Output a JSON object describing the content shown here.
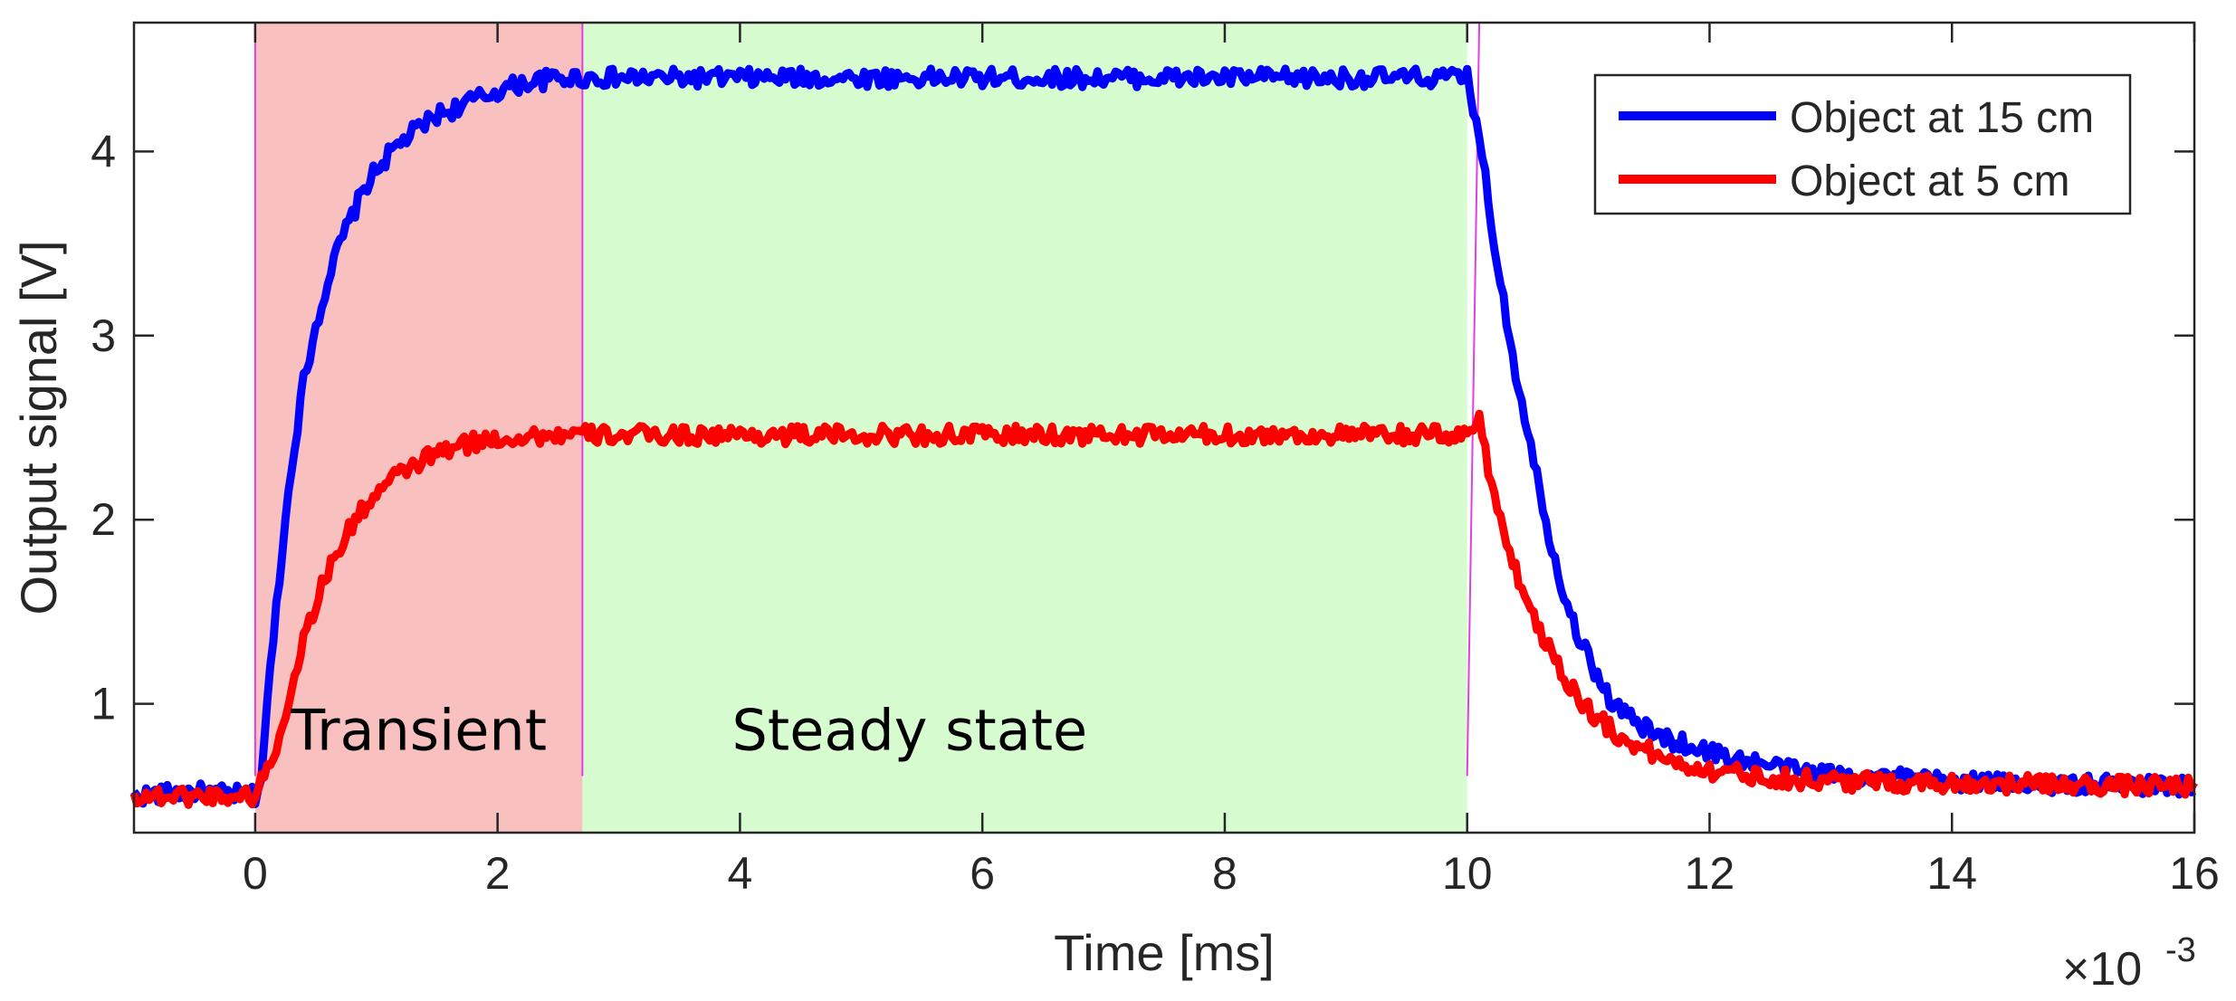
{
  "chart_data": {
    "type": "line",
    "title": "",
    "xlabel": "Time [ms]",
    "ylabel": "Output signal [V]",
    "x_multiplier_label": "×10",
    "x_multiplier_exponent": "-3",
    "xlim": [
      -1,
      16
    ],
    "ylim": [
      0.3,
      4.7
    ],
    "xticks": [
      0,
      2,
      4,
      6,
      8,
      10,
      12,
      14,
      16
    ],
    "xtick_labels": [
      "0",
      "2",
      "4",
      "6",
      "8",
      "10",
      "12",
      "14",
      "16"
    ],
    "yticks": [
      1,
      2,
      3,
      4
    ],
    "ytick_labels": [
      "1",
      "2",
      "3",
      "4"
    ],
    "grid": false,
    "legend_position": "top-right",
    "regions": [
      {
        "name": "transient",
        "label": "Transient",
        "x_start": 0,
        "x_end": 2.7,
        "color": "#f9c0c0"
      },
      {
        "name": "steady-state",
        "label": "Steady state",
        "x_start": 2.7,
        "x_end": 10,
        "color": "#d6fcd0"
      }
    ],
    "boundary_color": "#e040e0",
    "series": [
      {
        "name": "Object at 15 cm",
        "color": "#0000ff",
        "x": [
          -1,
          -0.5,
          0,
          0.05,
          0.1,
          0.2,
          0.3,
          0.4,
          0.5,
          0.6,
          0.7,
          0.8,
          0.9,
          1.0,
          1.1,
          1.2,
          1.3,
          1.4,
          1.5,
          1.6,
          1.7,
          1.8,
          1.9,
          2.0,
          2.1,
          2.2,
          2.3,
          2.4,
          2.5,
          2.6,
          2.7,
          10.0,
          10.1,
          10.2,
          10.3,
          10.4,
          10.5,
          10.6,
          10.7,
          10.8,
          10.9,
          11.0,
          11.1,
          11.2,
          11.3,
          11.4,
          11.5,
          11.6,
          11.8,
          12.0,
          12.2,
          12.4,
          12.6,
          12.8,
          13.0,
          13.5,
          14.0,
          14.5,
          15.0,
          15.5,
          16.0
        ],
        "values": [
          0.5,
          0.52,
          0.5,
          0.6,
          1.0,
          1.7,
          2.3,
          2.75,
          3.05,
          3.3,
          3.5,
          3.65,
          3.8,
          3.9,
          3.98,
          4.05,
          4.1,
          4.15,
          4.2,
          4.22,
          4.25,
          4.28,
          4.3,
          4.33,
          4.35,
          4.37,
          4.38,
          4.39,
          4.4,
          4.4,
          4.4,
          4.4,
          4.1,
          3.6,
          3.2,
          2.8,
          2.5,
          2.15,
          1.85,
          1.6,
          1.4,
          1.25,
          1.12,
          1.0,
          0.95,
          0.9,
          0.85,
          0.82,
          0.78,
          0.74,
          0.7,
          0.68,
          0.65,
          0.63,
          0.62,
          0.6,
          0.58,
          0.57,
          0.56,
          0.56,
          0.55
        ],
        "noise": 0.05
      },
      {
        "name": "Object at 5 cm",
        "color": "#ff0000",
        "x": [
          -1,
          -0.5,
          0,
          0.2,
          0.3,
          0.4,
          0.5,
          0.6,
          0.7,
          0.8,
          0.9,
          1.0,
          1.1,
          1.2,
          1.3,
          1.4,
          1.5,
          1.6,
          1.7,
          1.8,
          1.9,
          2.0,
          2.2,
          2.4,
          2.6,
          2.7,
          10.0,
          10.1,
          10.2,
          10.3,
          10.4,
          10.5,
          10.6,
          10.7,
          10.8,
          10.9,
          11.0,
          11.2,
          11.4,
          11.6,
          11.8,
          12.0,
          12.5,
          13.0,
          14.0,
          15.0,
          16.0
        ],
        "values": [
          0.5,
          0.5,
          0.5,
          0.8,
          1.1,
          1.35,
          1.55,
          1.72,
          1.85,
          1.97,
          2.07,
          2.14,
          2.2,
          2.25,
          2.29,
          2.33,
          2.36,
          2.38,
          2.4,
          2.42,
          2.43,
          2.44,
          2.45,
          2.46,
          2.46,
          2.46,
          2.46,
          2.55,
          2.2,
          1.95,
          1.72,
          1.55,
          1.4,
          1.28,
          1.15,
          1.05,
          0.97,
          0.85,
          0.77,
          0.71,
          0.67,
          0.64,
          0.6,
          0.58,
          0.57,
          0.56,
          0.55
        ],
        "noise": 0.05
      }
    ]
  }
}
